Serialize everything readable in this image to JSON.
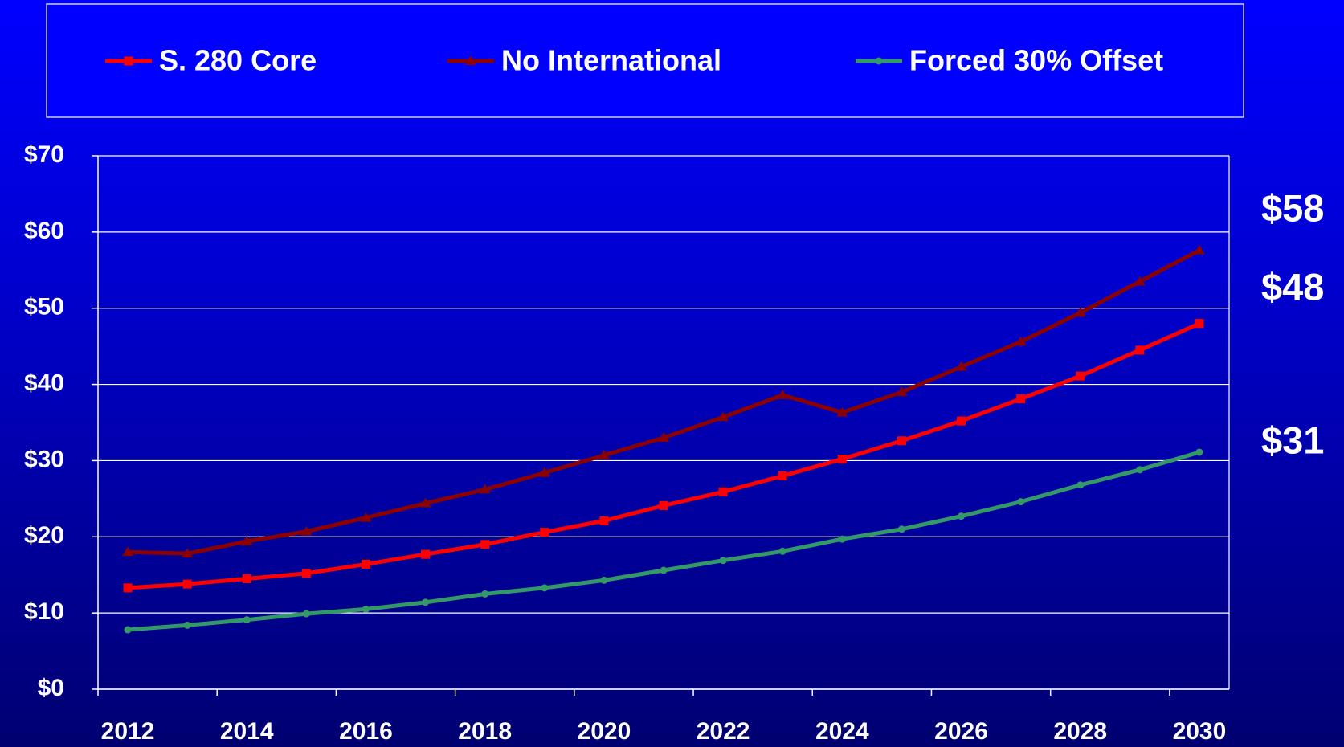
{
  "chart_data": {
    "type": "line",
    "categories": [
      "2012",
      null,
      "2014",
      null,
      "2016",
      null,
      "2018",
      null,
      "2020",
      null,
      "2022",
      null,
      "2024",
      null,
      "2026",
      null,
      "2028",
      null,
      "2030"
    ],
    "series": [
      {
        "name": "S. 280 Core",
        "color": "#ff0000",
        "marker": "square",
        "values": [
          13.3,
          13.8,
          14.5,
          15.2,
          16.4,
          17.7,
          19.0,
          20.6,
          22.1,
          24.1,
          25.9,
          28.0,
          30.2,
          32.6,
          35.2,
          38.1,
          41.1,
          44.5,
          48.0
        ]
      },
      {
        "name": "No International",
        "color": "#8b0000",
        "marker": "triangle",
        "values": [
          18.0,
          17.8,
          19.4,
          20.7,
          22.5,
          24.4,
          26.2,
          28.4,
          30.7,
          33.0,
          35.7,
          38.6,
          36.3,
          39.0,
          42.3,
          45.6,
          49.4,
          53.5,
          57.6
        ]
      },
      {
        "name": "Forced 30% Offset",
        "color": "#339966",
        "marker": "circle",
        "values": [
          7.8,
          8.4,
          9.1,
          9.9,
          10.5,
          11.4,
          12.5,
          13.3,
          14.3,
          15.6,
          16.9,
          18.1,
          19.7,
          21.0,
          22.7,
          24.6,
          26.8,
          28.8,
          31.1
        ]
      }
    ],
    "ylim": [
      0,
      70
    ],
    "yticks": [
      {
        "value": 0,
        "label": "$0"
      },
      {
        "value": 10,
        "label": "$10"
      },
      {
        "value": 20,
        "label": "$20"
      },
      {
        "value": 30,
        "label": "$30"
      },
      {
        "value": 40,
        "label": "$40"
      },
      {
        "value": 50,
        "label": "$50"
      },
      {
        "value": 60,
        "label": "$60"
      },
      {
        "value": 70,
        "label": "$70"
      }
    ],
    "grid": true,
    "legend": "top",
    "annotations": [
      "$58",
      "$48",
      "$31"
    ]
  }
}
